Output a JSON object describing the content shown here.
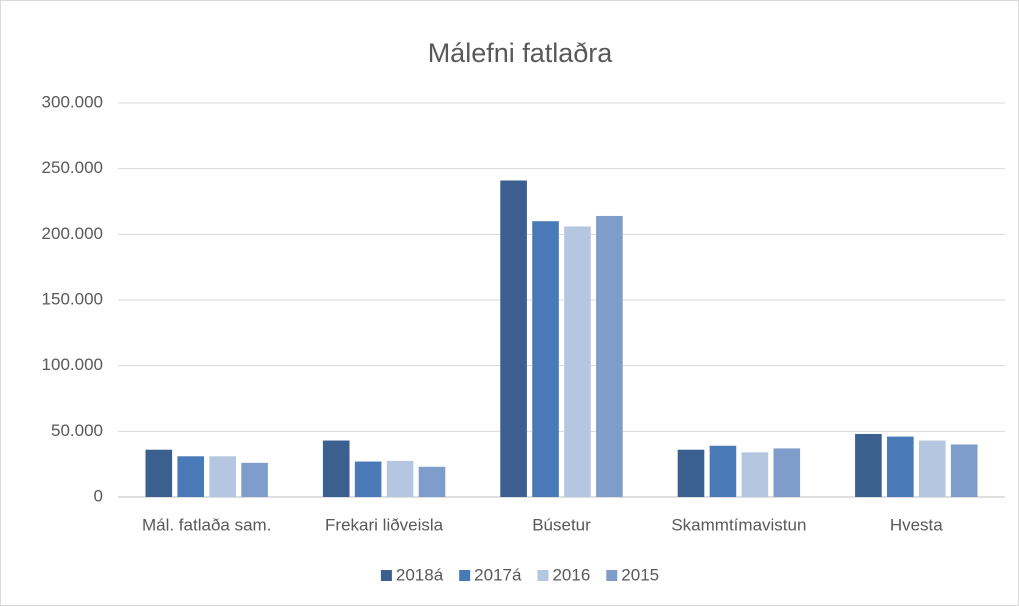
{
  "chart_data": {
    "type": "bar",
    "title": "Málefni fatlaðra",
    "categories": [
      "Mál. fatlaða sam.",
      "Frekari liðveisla",
      "Búsetur",
      "Skammtímavistun",
      "Hvesta"
    ],
    "series": [
      {
        "name": "2018á",
        "color": "#3b5f8f",
        "values": [
          36000,
          43000,
          241000,
          36000,
          48000
        ]
      },
      {
        "name": "2017á",
        "color": "#4a79b7",
        "values": [
          31000,
          27000,
          210000,
          39000,
          46000
        ]
      },
      {
        "name": "2016",
        "color": "#b5c6e1",
        "values": [
          31000,
          27500,
          206000,
          34000,
          43000
        ]
      },
      {
        "name": "2015",
        "color": "#7f9dcb",
        "values": [
          26000,
          23000,
          214000,
          37000,
          40000
        ]
      }
    ],
    "ylim": [
      0,
      300000
    ],
    "yticks": [
      0,
      {
        "value": 50000,
        "label": "50.000"
      },
      {
        "value": 100000,
        "label": "100.000"
      },
      {
        "value": 150000,
        "label": "150.000"
      },
      {
        "value": 200000,
        "label": "200.000"
      },
      {
        "value": 250000,
        "label": "250.000"
      },
      {
        "value": 300000,
        "label": "300.000"
      }
    ],
    "grid": true,
    "legend": "bottom"
  }
}
